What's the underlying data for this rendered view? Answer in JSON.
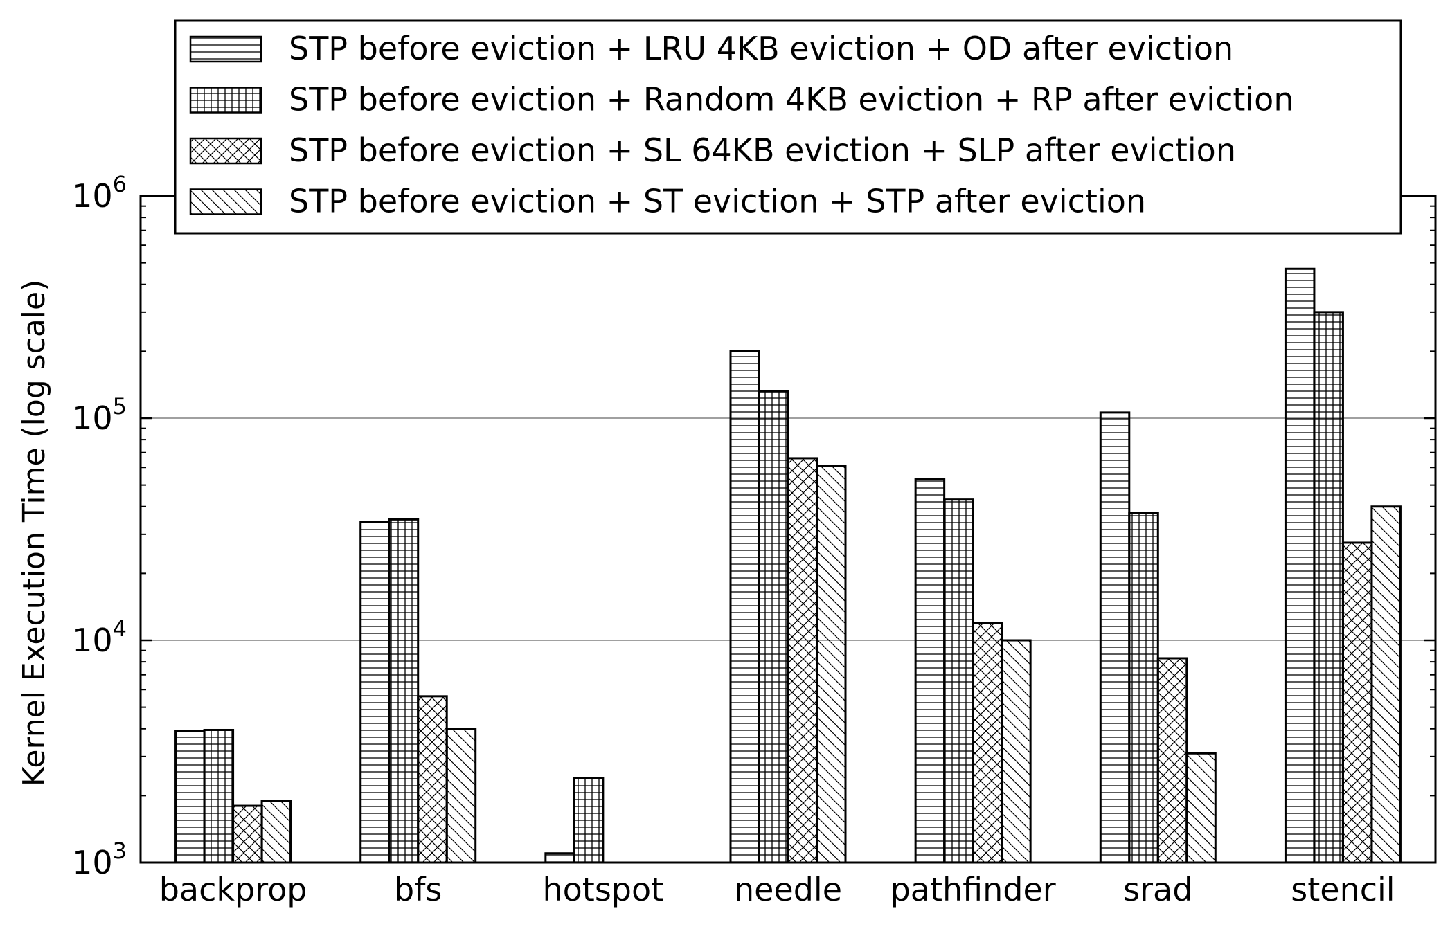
{
  "chart_data": {
    "type": "bar",
    "title": "",
    "xlabel": "",
    "ylabel": "Kernel Execution Time (log scale)",
    "yscale": "log",
    "ylim": [
      1000,
      1000000
    ],
    "yticks": [
      {
        "value": 1000,
        "base": "10",
        "exp": "3"
      },
      {
        "value": 10000,
        "base": "10",
        "exp": "4"
      },
      {
        "value": 100000,
        "base": "10",
        "exp": "5"
      },
      {
        "value": 1000000,
        "base": "10",
        "exp": "6"
      }
    ],
    "grid": "horizontal",
    "legend_position": "top",
    "categories": [
      "backprop",
      "bfs",
      "hotspot",
      "needle",
      "pathfinder",
      "srad",
      "stencil"
    ],
    "series": [
      {
        "name": "STP before eviction + LRU 4KB eviction + OD after eviction",
        "hatch": "horizontal",
        "values": [
          3900,
          34000,
          1100,
          200000,
          53000,
          106000,
          470000
        ]
      },
      {
        "name": "STP before eviction + Random 4KB eviction + RP after eviction",
        "hatch": "grid",
        "values": [
          3950,
          35000,
          2400,
          132000,
          43000,
          37500,
          300000
        ]
      },
      {
        "name": "STP before eviction + SL 64KB eviction + SLP after eviction",
        "hatch": "crosshatch",
        "values": [
          1800,
          5600,
          1000,
          66000,
          12000,
          8300,
          27500
        ]
      },
      {
        "name": "STP before eviction + ST eviction + STP after eviction",
        "hatch": "diagonal",
        "values": [
          1900,
          4000,
          1000,
          61000,
          10000,
          3100,
          40000
        ]
      }
    ]
  }
}
